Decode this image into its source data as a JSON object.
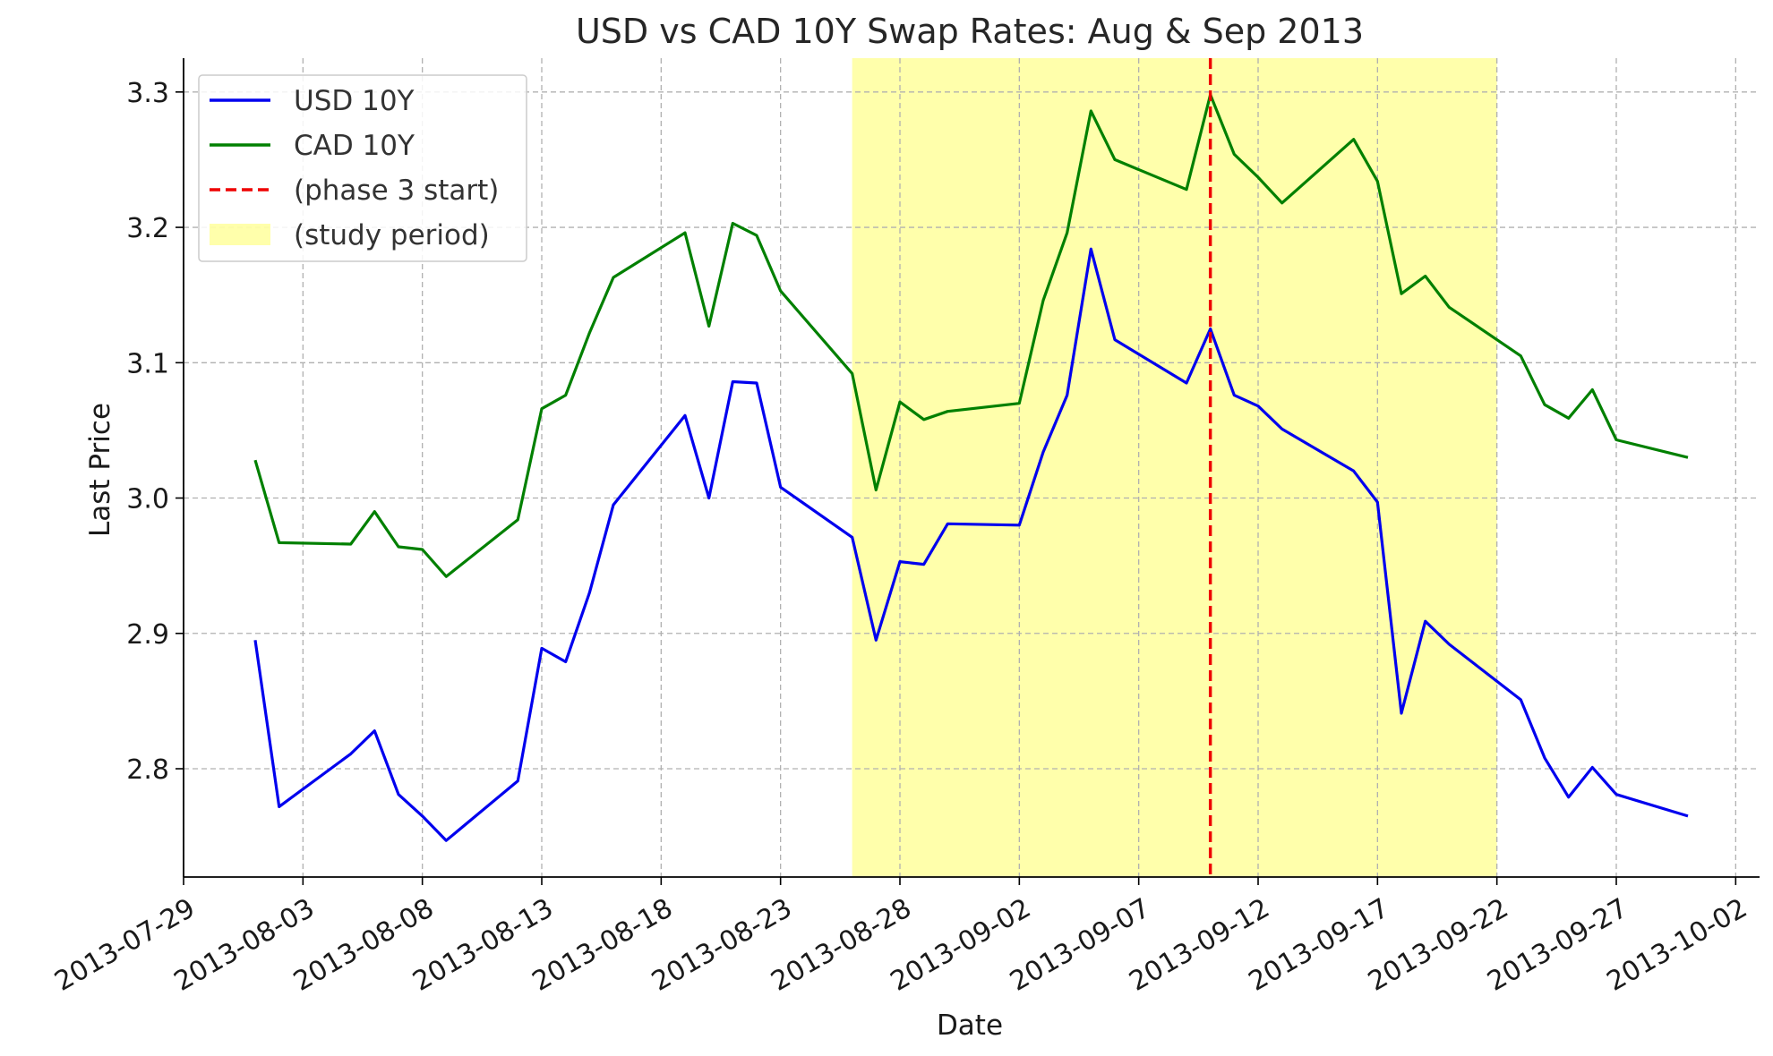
{
  "chart_data": {
    "type": "line",
    "title": "USD vs CAD 10Y Swap Rates: Aug & Sep 2013",
    "xlabel": "Date",
    "ylabel": "Last Price",
    "xlim": [
      "2013-07-29",
      "2013-10-03"
    ],
    "ylim": [
      2.72,
      3.325
    ],
    "grid": true,
    "legend_position": "top-left",
    "x_ticks": [
      "2013-07-29",
      "2013-08-03",
      "2013-08-08",
      "2013-08-13",
      "2013-08-18",
      "2013-08-23",
      "2013-08-28",
      "2013-09-02",
      "2013-09-07",
      "2013-09-12",
      "2013-09-17",
      "2013-09-22",
      "2013-09-27",
      "2013-10-02"
    ],
    "y_ticks": [
      "2.8",
      "2.9",
      "3.0",
      "3.1",
      "3.2",
      "3.3"
    ],
    "shaded_region": {
      "label": "(study period)",
      "start": "2013-08-26",
      "end": "2013-09-22",
      "color": "#ffff66"
    },
    "vertical_line": {
      "label": "(phase 3 start)",
      "x": "2013-09-10",
      "color": "#ee0000"
    },
    "series": [
      {
        "name": "USD 10Y",
        "color": "#0000ee",
        "points": [
          [
            "2013-08-01",
            2.895
          ],
          [
            "2013-08-02",
            2.772
          ],
          [
            "2013-08-05",
            2.811
          ],
          [
            "2013-08-06",
            2.828
          ],
          [
            "2013-08-07",
            2.781
          ],
          [
            "2013-08-08",
            2.765
          ],
          [
            "2013-08-09",
            2.747
          ],
          [
            "2013-08-12",
            2.791
          ],
          [
            "2013-08-13",
            2.889
          ],
          [
            "2013-08-14",
            2.879
          ],
          [
            "2013-08-15",
            2.93
          ],
          [
            "2013-08-16",
            2.995
          ],
          [
            "2013-08-19",
            3.061
          ],
          [
            "2013-08-20",
            3.0
          ],
          [
            "2013-08-21",
            3.086
          ],
          [
            "2013-08-22",
            3.085
          ],
          [
            "2013-08-23",
            3.008
          ],
          [
            "2013-08-26",
            2.971
          ],
          [
            "2013-08-27",
            2.895
          ],
          [
            "2013-08-28",
            2.953
          ],
          [
            "2013-08-29",
            2.951
          ],
          [
            "2013-08-30",
            2.981
          ],
          [
            "2013-09-02",
            2.98
          ],
          [
            "2013-09-03",
            3.034
          ],
          [
            "2013-09-04",
            3.076
          ],
          [
            "2013-09-05",
            3.184
          ],
          [
            "2013-09-06",
            3.117
          ],
          [
            "2013-09-09",
            3.085
          ],
          [
            "2013-09-10",
            3.125
          ],
          [
            "2013-09-11",
            3.076
          ],
          [
            "2013-09-12",
            3.068
          ],
          [
            "2013-09-13",
            3.051
          ],
          [
            "2013-09-16",
            3.02
          ],
          [
            "2013-09-17",
            2.997
          ],
          [
            "2013-09-18",
            2.841
          ],
          [
            "2013-09-19",
            2.909
          ],
          [
            "2013-09-20",
            2.892
          ],
          [
            "2013-09-23",
            2.851
          ],
          [
            "2013-09-24",
            2.808
          ],
          [
            "2013-09-25",
            2.779
          ],
          [
            "2013-09-26",
            2.801
          ],
          [
            "2013-09-27",
            2.781
          ],
          [
            "2013-09-30",
            2.765
          ]
        ]
      },
      {
        "name": "CAD 10Y",
        "color": "#008000",
        "points": [
          [
            "2013-08-01",
            3.028
          ],
          [
            "2013-08-02",
            2.967
          ],
          [
            "2013-08-05",
            2.966
          ],
          [
            "2013-08-06",
            2.99
          ],
          [
            "2013-08-07",
            2.964
          ],
          [
            "2013-08-08",
            2.962
          ],
          [
            "2013-08-09",
            2.942
          ],
          [
            "2013-08-12",
            2.984
          ],
          [
            "2013-08-13",
            3.066
          ],
          [
            "2013-08-14",
            3.076
          ],
          [
            "2013-08-15",
            3.122
          ],
          [
            "2013-08-16",
            3.163
          ],
          [
            "2013-08-19",
            3.196
          ],
          [
            "2013-08-20",
            3.127
          ],
          [
            "2013-08-21",
            3.203
          ],
          [
            "2013-08-22",
            3.194
          ],
          [
            "2013-08-23",
            3.153
          ],
          [
            "2013-08-26",
            3.092
          ],
          [
            "2013-08-27",
            3.006
          ],
          [
            "2013-08-28",
            3.071
          ],
          [
            "2013-08-29",
            3.058
          ],
          [
            "2013-08-30",
            3.064
          ],
          [
            "2013-09-02",
            3.07
          ],
          [
            "2013-09-03",
            3.146
          ],
          [
            "2013-09-04",
            3.196
          ],
          [
            "2013-09-05",
            3.286
          ],
          [
            "2013-09-06",
            3.25
          ],
          [
            "2013-09-09",
            3.228
          ],
          [
            "2013-09-10",
            3.298
          ],
          [
            "2013-09-11",
            3.254
          ],
          [
            "2013-09-12",
            3.237
          ],
          [
            "2013-09-13",
            3.218
          ],
          [
            "2013-09-16",
            3.265
          ],
          [
            "2013-09-17",
            3.234
          ],
          [
            "2013-09-18",
            3.151
          ],
          [
            "2013-09-19",
            3.164
          ],
          [
            "2013-09-20",
            3.141
          ],
          [
            "2013-09-23",
            3.105
          ],
          [
            "2013-09-24",
            3.069
          ],
          [
            "2013-09-25",
            3.059
          ],
          [
            "2013-09-26",
            3.08
          ],
          [
            "2013-09-27",
            3.043
          ],
          [
            "2013-09-30",
            3.03
          ]
        ]
      }
    ]
  }
}
